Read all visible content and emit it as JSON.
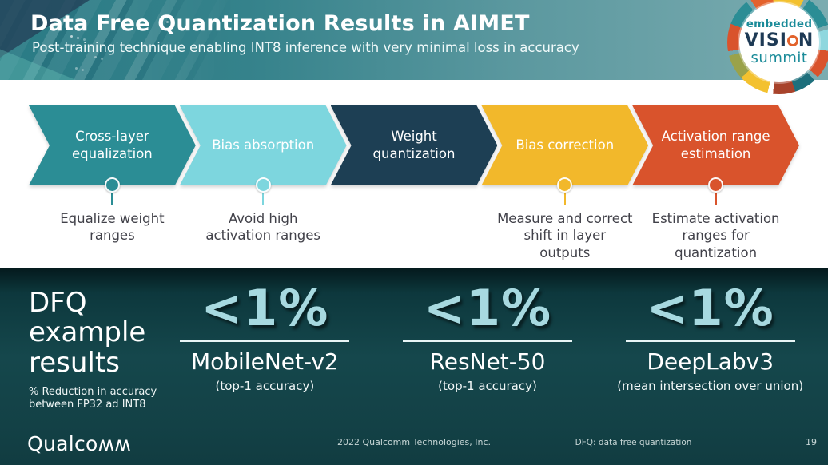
{
  "header": {
    "title": "Data Free Quantization Results in AIMET",
    "subtitle": "Post-training technique enabling INT8 inference with very minimal loss in accuracy"
  },
  "logo": {
    "embedded": "embedded",
    "vision_pre": "VISI",
    "vision_post": "N",
    "summit": "summit"
  },
  "pipeline": {
    "steps": [
      {
        "label": "Cross-layer equalization",
        "color": "#2b8d95",
        "note": "Equalize weight ranges"
      },
      {
        "label": "Bias absorption",
        "color": "#7dd6de",
        "note": "Avoid high activation ranges"
      },
      {
        "label": "Weight quantization",
        "color": "#1d3f54",
        "note": ""
      },
      {
        "label": "Bias correction",
        "color": "#f2b82b",
        "note": "Measure and correct shift in layer outputs"
      },
      {
        "label": "Activation range estimation",
        "color": "#d9532c",
        "note": "Estimate activation ranges for quantization"
      }
    ]
  },
  "results": {
    "heading": "DFQ example results",
    "note": "% Reduction in accuracy between FP32 ad INT8",
    "items": [
      {
        "value": "<1%",
        "model": "MobileNet-v2",
        "metric": "(top-1 accuracy)"
      },
      {
        "value": "<1%",
        "model": "ResNet-50",
        "metric": "(top-1 accuracy)"
      },
      {
        "value": "<1%",
        "model": "DeepLabv3",
        "metric": "(mean intersection over union)"
      }
    ]
  },
  "footer": {
    "brand": "Qualcoʍʍ",
    "copyright": "2022 Qualcomm Technologies, Inc.",
    "abbrev": "DFQ: data free quantization",
    "page": "19"
  },
  "colors": {
    "header_gradient_left": "#2a7b85",
    "header_gradient_right": "#7bacb0",
    "results_background": "#15474c",
    "result_value_cyan": "#a7d9e0",
    "annotation_text": "#414149",
    "logo_teal": "#1a8b99",
    "logo_navy": "#1e3a55"
  }
}
